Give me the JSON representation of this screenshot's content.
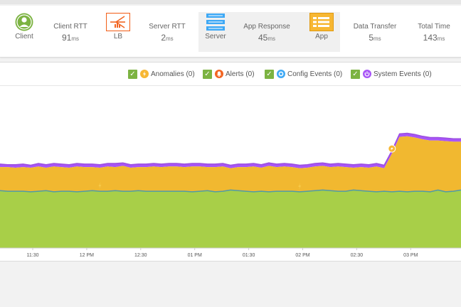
{
  "flow": {
    "client_label": "Client",
    "lb_label": "LB",
    "server_label": "Server",
    "app_label": "App",
    "client_rtt": {
      "label": "Client RTT",
      "value": "91",
      "unit": "ms"
    },
    "server_rtt": {
      "label": "Server RTT",
      "value": "2",
      "unit": "ms"
    },
    "app_response": {
      "label": "App Response",
      "value": "45",
      "unit": "ms"
    },
    "data_transfer": {
      "label": "Data Transfer",
      "value": "5",
      "unit": "ms"
    },
    "total_time": {
      "label": "Total Time",
      "value": "143",
      "unit": "ms"
    }
  },
  "legend": {
    "anomalies": "Anomalies (0)",
    "alerts": "Alerts (0)",
    "config_events": "Config Events (0)",
    "system_events": "System Events (0)"
  },
  "colors": {
    "client": "#7cb342",
    "lb": "#f26522",
    "server": "#3fa9f5",
    "app": "#f7b733",
    "green_area": "#a8cf48",
    "orange_area": "#f1b830",
    "purple_line": "#a855f7",
    "teal_line": "#4f9aa8"
  },
  "chart_data": {
    "type": "area",
    "x_ticks": [
      "11:30",
      "12 PM",
      "12:30",
      "01 PM",
      "01:30",
      "02 PM",
      "02:30",
      "03 PM"
    ],
    "series": [
      {
        "values": [
          95,
          94,
          94,
          94,
          93,
          94,
          95,
          93,
          94,
          94,
          93,
          94,
          95,
          94,
          94,
          95,
          94,
          94,
          95,
          94,
          94,
          94,
          94,
          94,
          94,
          93,
          94,
          95,
          93,
          94,
          96,
          95,
          94,
          93,
          94,
          93,
          94,
          94,
          94,
          93,
          94,
          95,
          96,
          95,
          94,
          94,
          96,
          95,
          94,
          93,
          94,
          93,
          94,
          93,
          94,
          94,
          93,
          96,
          93,
          94,
          96
        ]
      },
      {
        "values": [
          134,
          134,
          133,
          134,
          133,
          135,
          133,
          135,
          134,
          133,
          135,
          134,
          134,
          133,
          135,
          134,
          136,
          133,
          134,
          134,
          135,
          134,
          135,
          135,
          134,
          135,
          135,
          134,
          134,
          135,
          132,
          134,
          134,
          135,
          133,
          136,
          134,
          135,
          134,
          132,
          133,
          135,
          136,
          134,
          135,
          134,
          133,
          134,
          133,
          135,
          132,
          156,
          184,
          185,
          183,
          180,
          178,
          178,
          177,
          176,
          176
        ]
      },
      {
        "values": [
          139,
          138,
          138,
          139,
          137,
          140,
          138,
          140,
          139,
          138,
          140,
          139,
          139,
          138,
          140,
          140,
          141,
          138,
          139,
          139,
          140,
          139,
          140,
          140,
          139,
          140,
          140,
          139,
          139,
          140,
          137,
          139,
          139,
          140,
          138,
          141,
          139,
          140,
          139,
          137,
          138,
          140,
          141,
          139,
          140,
          139,
          138,
          139,
          138,
          140,
          137,
          161,
          189,
          190,
          188,
          185,
          183,
          183,
          182,
          181,
          181
        ]
      }
    ],
    "markers": [
      {
        "type": "anomaly-bolt",
        "x_index": 13
      },
      {
        "type": "anomaly-bolt",
        "x_index": 39
      },
      {
        "type": "anomaly",
        "x_index": 51
      }
    ]
  }
}
